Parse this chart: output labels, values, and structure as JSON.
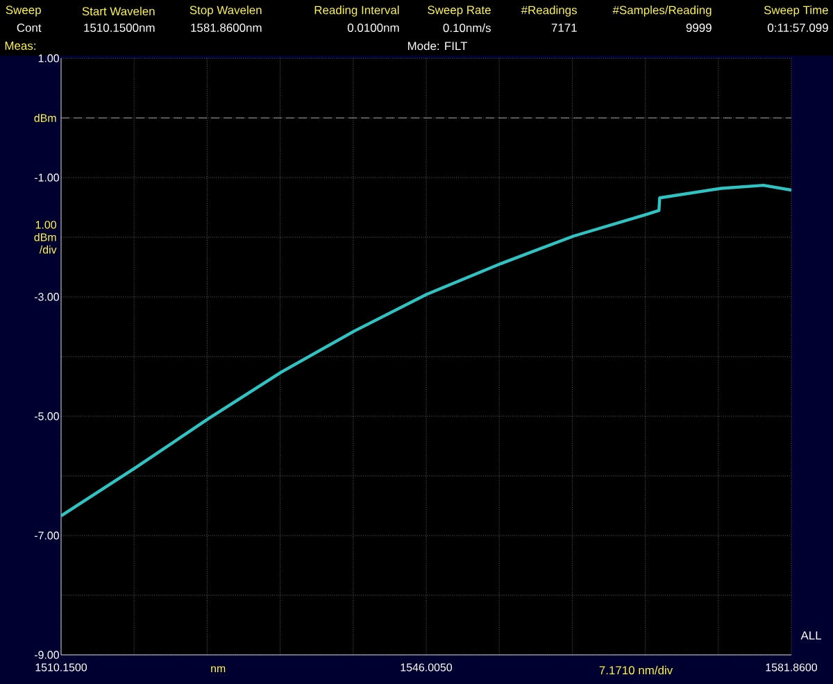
{
  "chart_data": {
    "type": "line",
    "xlabel": "nm",
    "annotations": [
      "Sweep",
      "Start Wavelen",
      "Stop Wavelen",
      "Reading Interval",
      "Sweep Rate",
      "#Readings",
      "#Samples/Reading",
      "Sweep Time",
      "Cont",
      "1510.1500nm",
      "1581.8600nm",
      "0.0100nm",
      "0.10nm/s",
      "7171",
      "9999",
      "0:11:57.099",
      "Meas:",
      "Mode: FILT",
      "7.1710 nm/div",
      "ALL",
      "dBm",
      "1.00 dBm /div"
    ],
    "series": [
      {
        "color": "#2fc4c4",
        "x": [
          1510.15,
          1517.49,
          1524.63,
          1531.78,
          1538.86,
          1546.02,
          1553.37,
          1560.49,
          1567.57,
          1568.86,
          1568.93,
          1574.99,
          1579.12,
          1581.86
        ],
        "values": [
          -6.67,
          -5.86,
          -5.04,
          -4.26,
          -3.58,
          -2.96,
          -2.44,
          -1.98,
          -1.62,
          -1.55,
          -1.34,
          -1.18,
          -1.13,
          -1.21
        ]
      }
    ],
    "marker": "none",
    "xlim": [
      1510.15,
      1581.86
    ],
    "ylim": [
      -9,
      1
    ],
    "xticks": [
      {
        "value": 1510.15,
        "label": "1510.1500"
      },
      {
        "value": 1517.321,
        "label": null
      },
      {
        "value": 1524.492,
        "label": null
      },
      {
        "value": 1531.663,
        "label": null
      },
      {
        "value": 1538.834,
        "label": null
      },
      {
        "value": 1546.005,
        "label": "1546.0050"
      },
      {
        "value": 1553.176,
        "label": null
      },
      {
        "value": 1560.347,
        "label": null
      },
      {
        "value": 1567.518,
        "label": null
      },
      {
        "value": 1574.689,
        "label": null
      },
      {
        "value": 1581.86,
        "label": "1581.8600"
      }
    ],
    "yticks": [
      {
        "value": 1,
        "label": "1.00"
      },
      {
        "value": 0,
        "label": null
      },
      {
        "value": -1,
        "label": "-1.00"
      },
      {
        "value": -2,
        "label": null
      },
      {
        "value": -3,
        "label": "-3.00"
      },
      {
        "value": -4,
        "label": null
      },
      {
        "value": -5,
        "label": "-5.00"
      },
      {
        "value": -6,
        "label": null
      },
      {
        "value": -7,
        "label": "-7.00"
      },
      {
        "value": -8,
        "label": null
      },
      {
        "value": -9,
        "label": "-9.00"
      }
    ],
    "ref_lines": [
      {
        "axis": "y",
        "value": 0,
        "color": "#a0a0a0",
        "line_style": "dashed"
      }
    ],
    "grid": true
  }
}
